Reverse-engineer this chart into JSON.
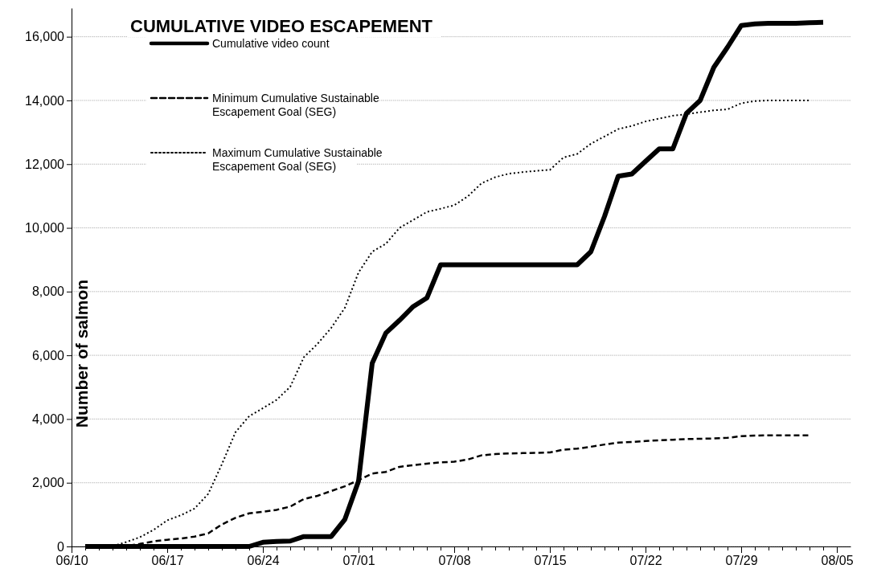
{
  "chart_data": {
    "type": "line",
    "title": "CUMULATIVE VIDEO ESCAPEMENT",
    "ylabel": "Number of salmon",
    "x": [
      "--06-11",
      "--06-12",
      "--06-13",
      "--06-14",
      "--06-15",
      "--06-16",
      "--06-17",
      "--06-18",
      "--06-19",
      "--06-20",
      "--06-21",
      "--06-22",
      "--06-23",
      "--06-24",
      "--06-25",
      "--06-26",
      "--06-27",
      "--06-28",
      "--06-29",
      "--06-30",
      "--07-01",
      "--07-02",
      "--07-03",
      "--07-04",
      "--07-05",
      "--07-06",
      "--07-07",
      "--07-08",
      "--07-09",
      "--07-10",
      "--07-11",
      "--07-12",
      "--07-13",
      "--07-14",
      "--07-15",
      "--07-16",
      "--07-17",
      "--07-18",
      "--07-19",
      "--07-20",
      "--07-21",
      "--07-22",
      "--07-23",
      "--07-24",
      "--07-25",
      "--07-26",
      "--07-27",
      "--07-28",
      "--07-29",
      "--07-30",
      "--07-31",
      "--08-01",
      "--08-02",
      "--08-03",
      "--08-04"
    ],
    "series": [
      {
        "name": "Cumulative video count",
        "color": "#000000",
        "line_style": "solid",
        "values": [
          0,
          0,
          0,
          0,
          0,
          0,
          0,
          0,
          0,
          0,
          0,
          0,
          0,
          130,
          160,
          170,
          310,
          310,
          310,
          850,
          2050,
          5750,
          6700,
          7100,
          7530,
          7800,
          8840,
          8840,
          8840,
          8840,
          8840,
          8840,
          8840,
          8840,
          8840,
          8840,
          8840,
          9250,
          10360,
          11620,
          11690,
          12090,
          12480,
          12480,
          13600,
          14000,
          15040,
          15670,
          16350,
          16400,
          16420,
          16420,
          16420,
          16440,
          16450
        ]
      },
      {
        "name": "Minimum Cumulative Sustainable Escapement Goal (SEG)",
        "color": "#000000",
        "line_style": "dashed",
        "values": [
          0,
          0,
          0,
          20,
          80,
          160,
          210,
          250,
          310,
          410,
          690,
          900,
          1040,
          1090,
          1150,
          1250,
          1490,
          1590,
          1740,
          1890,
          2080,
          2290,
          2340,
          2500,
          2550,
          2600,
          2640,
          2660,
          2730,
          2860,
          2900,
          2920,
          2930,
          2940,
          2950,
          3040,
          3070,
          3130,
          3200,
          3260,
          3280,
          3310,
          3330,
          3350,
          3370,
          3380,
          3390,
          3410,
          3460,
          3480,
          3490,
          3490,
          3490,
          3490,
          null
        ]
      },
      {
        "name": "Maximum Cumulative Sustainable Escapement Goal (SEG)",
        "color": "#000000",
        "line_style": "dotted",
        "values": [
          0,
          0,
          10,
          140,
          290,
          520,
          820,
          980,
          1190,
          1650,
          2580,
          3590,
          4090,
          4340,
          4600,
          5010,
          5940,
          6360,
          6860,
          7490,
          8600,
          9250,
          9500,
          10000,
          10250,
          10500,
          10600,
          10710,
          10990,
          11400,
          11590,
          11700,
          11750,
          11790,
          11820,
          12210,
          12320,
          12640,
          12870,
          13100,
          13200,
          13340,
          13430,
          13520,
          13570,
          13630,
          13690,
          13720,
          13910,
          13980,
          14000,
          14000,
          14000,
          14000,
          null
        ]
      }
    ],
    "xlim": [
      "--06-10",
      "--08-06"
    ],
    "xticks": [
      {
        "value": "--06-10",
        "label": "06/10"
      },
      {
        "value": "--06-11",
        "label": null
      },
      {
        "value": "--06-12",
        "label": null
      },
      {
        "value": "--06-13",
        "label": null
      },
      {
        "value": "--06-14",
        "label": null
      },
      {
        "value": "--06-15",
        "label": null
      },
      {
        "value": "--06-16",
        "label": null
      },
      {
        "value": "--06-17",
        "label": "06/17"
      },
      {
        "value": "--06-18",
        "label": null
      },
      {
        "value": "--06-19",
        "label": null
      },
      {
        "value": "--06-20",
        "label": null
      },
      {
        "value": "--06-21",
        "label": null
      },
      {
        "value": "--06-22",
        "label": null
      },
      {
        "value": "--06-23",
        "label": null
      },
      {
        "value": "--06-24",
        "label": "06/24"
      },
      {
        "value": "--06-25",
        "label": null
      },
      {
        "value": "--06-26",
        "label": null
      },
      {
        "value": "--06-27",
        "label": null
      },
      {
        "value": "--06-28",
        "label": null
      },
      {
        "value": "--06-29",
        "label": null
      },
      {
        "value": "--06-30",
        "label": null
      },
      {
        "value": "--07-01",
        "label": "07/01"
      },
      {
        "value": "--07-02",
        "label": null
      },
      {
        "value": "--07-03",
        "label": null
      },
      {
        "value": "--07-04",
        "label": null
      },
      {
        "value": "--07-05",
        "label": null
      },
      {
        "value": "--07-06",
        "label": null
      },
      {
        "value": "--07-07",
        "label": null
      },
      {
        "value": "--07-08",
        "label": "07/08"
      },
      {
        "value": "--07-09",
        "label": null
      },
      {
        "value": "--07-10",
        "label": null
      },
      {
        "value": "--07-11",
        "label": null
      },
      {
        "value": "--07-12",
        "label": null
      },
      {
        "value": "--07-13",
        "label": null
      },
      {
        "value": "--07-14",
        "label": null
      },
      {
        "value": "--07-15",
        "label": "07/15"
      },
      {
        "value": "--07-16",
        "label": null
      },
      {
        "value": "--07-17",
        "label": null
      },
      {
        "value": "--07-18",
        "label": null
      },
      {
        "value": "--07-19",
        "label": null
      },
      {
        "value": "--07-20",
        "label": null
      },
      {
        "value": "--07-21",
        "label": null
      },
      {
        "value": "--07-22",
        "label": "07/22"
      },
      {
        "value": "--07-23",
        "label": null
      },
      {
        "value": "--07-24",
        "label": null
      },
      {
        "value": "--07-25",
        "label": null
      },
      {
        "value": "--07-26",
        "label": null
      },
      {
        "value": "--07-27",
        "label": null
      },
      {
        "value": "--07-28",
        "label": null
      },
      {
        "value": "--07-29",
        "label": "07/29"
      },
      {
        "value": "--07-30",
        "label": null
      },
      {
        "value": "--07-31",
        "label": null
      },
      {
        "value": "--08-01",
        "label": null
      },
      {
        "value": "--08-02",
        "label": null
      },
      {
        "value": "--08-03",
        "label": null
      },
      {
        "value": "--08-04",
        "label": null
      },
      {
        "value": "--08-05",
        "label": "08/05"
      }
    ],
    "ylim": [
      0,
      16900
    ],
    "yticks": [
      {
        "value": 0,
        "label": "0"
      },
      {
        "value": 2000,
        "label": "2,000"
      },
      {
        "value": 4000,
        "label": "4,000"
      },
      {
        "value": 6000,
        "label": "6,000"
      },
      {
        "value": 8000,
        "label": "8,000"
      },
      {
        "value": 10000,
        "label": "10,000"
      },
      {
        "value": 12000,
        "label": "12,000"
      },
      {
        "value": 14000,
        "label": "14,000"
      },
      {
        "value": 16000,
        "label": "16,000"
      }
    ],
    "grid": "y",
    "legend": "top left"
  }
}
